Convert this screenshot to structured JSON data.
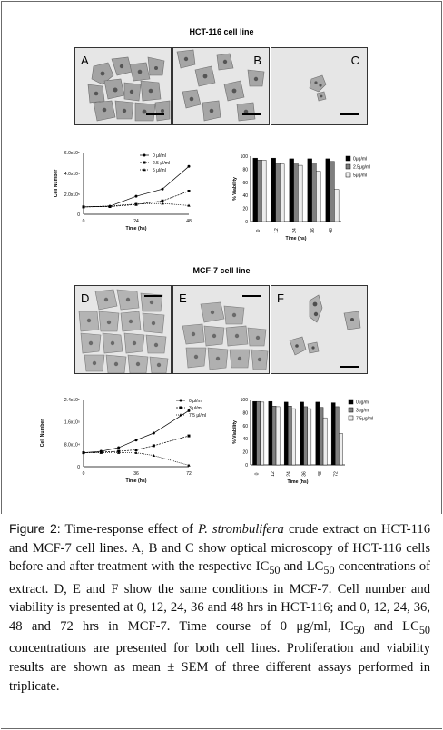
{
  "sections": [
    {
      "title": "HCT-116 cell line",
      "panels": [
        "A",
        "B",
        "C"
      ],
      "growth": {
        "ylabel": "Cell Number",
        "xlabel": "Time (hs)",
        "yticks": [
          "0",
          "2.0x10⁵",
          "4.0x10⁵",
          "6.0x10⁵"
        ],
        "xticks": [
          "0",
          "24",
          "48"
        ],
        "legend": [
          "0 μl/ml",
          "2.5 μl/ml",
          "5 μl/ml"
        ]
      },
      "viability": {
        "ylabel": "% Viability",
        "xlabel": "Time (hs)",
        "yticks": [
          "0",
          "20",
          "40",
          "60",
          "80",
          "100"
        ],
        "xticks": [
          "0",
          "12",
          "24",
          "36",
          "48"
        ],
        "legend": [
          "0μg/ml",
          "2.5μg/ml",
          "5μg/ml"
        ]
      }
    },
    {
      "title": "MCF-7 cell line",
      "panels": [
        "D",
        "E",
        "F"
      ],
      "growth": {
        "ylabel": "Cell Number",
        "xlabel": "Time (hs)",
        "yticks": [
          "0",
          "8.0x10⁴",
          "1.6x10⁵",
          "2.4x10⁵"
        ],
        "xticks": [
          "0",
          "36",
          "72"
        ],
        "legend": [
          "0 μl/ml",
          "3 μl/ml",
          "7.5 μl/ml"
        ]
      },
      "viability": {
        "ylabel": "% Viability",
        "xlabel": "Time (hs)",
        "yticks": [
          "0",
          "20",
          "40",
          "60",
          "80",
          "100"
        ],
        "xticks": [
          "0",
          "12",
          "24",
          "36",
          "48",
          "72"
        ],
        "legend": [
          "0μg/ml",
          "3μg/ml",
          "7.5μg/ml"
        ]
      }
    }
  ],
  "chart_data": [
    {
      "type": "line",
      "x": [
        0,
        12,
        24,
        36,
        48
      ],
      "series": [
        {
          "name": "0 μl/ml",
          "values": [
            72000,
            78000,
            175000,
            245000,
            465000
          ]
        },
        {
          "name": "2.5 μl/ml",
          "values": [
            72000,
            75000,
            95000,
            130000,
            225000
          ]
        },
        {
          "name": "5 μl/ml",
          "values": [
            72000,
            80000,
            100000,
            105000,
            85000
          ]
        }
      ],
      "title": "",
      "xlabel": "Time (hs)",
      "ylabel": "Cell Number",
      "ylim": [
        0,
        600000
      ]
    },
    {
      "type": "bar",
      "categories": [
        "0",
        "12",
        "24",
        "36",
        "48"
      ],
      "series": [
        {
          "name": "0μg/ml",
          "values": [
            97,
            97,
            96,
            96,
            96
          ]
        },
        {
          "name": "2.5μg/ml",
          "values": [
            94,
            89,
            90,
            90,
            92
          ]
        },
        {
          "name": "5μg/ml",
          "values": [
            94,
            88,
            86,
            77,
            49
          ]
        }
      ],
      "title": "",
      "xlabel": "Time (hs)",
      "ylabel": "% Viability",
      "ylim": [
        0,
        100
      ]
    },
    {
      "type": "line",
      "x": [
        0,
        12,
        24,
        36,
        48,
        72
      ],
      "series": [
        {
          "name": "0 μl/ml",
          "values": [
            50000,
            55000,
            68000,
            95000,
            120000,
            200000
          ]
        },
        {
          "name": "3 μl/ml",
          "values": [
            50000,
            52000,
            55000,
            60000,
            75000,
            110000
          ]
        },
        {
          "name": "7.5 μl/ml",
          "values": [
            50000,
            50000,
            50000,
            50000,
            40000,
            5000
          ]
        }
      ],
      "title": "",
      "xlabel": "Time (hs)",
      "ylabel": "Cell Number",
      "ylim": [
        0,
        240000
      ]
    },
    {
      "type": "bar",
      "categories": [
        "0",
        "12",
        "24",
        "36",
        "48",
        "72"
      ],
      "series": [
        {
          "name": "0μg/ml",
          "values": [
            97,
            97,
            96,
            96,
            96,
            95
          ]
        },
        {
          "name": "3μg/ml",
          "values": [
            97,
            90,
            90,
            89,
            88,
            89
          ]
        },
        {
          "name": "7.5μg/ml",
          "values": [
            96,
            89,
            86,
            86,
            72,
            48
          ]
        }
      ],
      "title": "",
      "xlabel": "Time (hs)",
      "ylabel": "% Viability",
      "ylim": [
        0,
        100
      ]
    }
  ],
  "colors": {
    "series_dark": "#000000",
    "series_mid": "#7f7f7f",
    "series_light": "#ededed",
    "panel_bg": "#e6e6e6",
    "cell": "#a8a8a8"
  },
  "caption": {
    "label": "Figure 2:",
    "p1": " Time-response effect of ",
    "species": "P. strombulifera",
    "p2": " crude extract on HCT-116 and MCF-7 cell lines. A, B and C show optical microscopy of HCT-116 cells before and after treatment with the respective IC",
    "sub1": "50",
    "p3": " and LC",
    "sub2": "50",
    "p4": " concentrations of extract. D, E and F show the same conditions in MCF-7. Cell number and viability is presented at 0, 12, 24, 36 and 48 hrs in HCT-116; and 0, 12, 24, 36, 48 and 72 hrs in MCF-7. Time course of 0 μg/ml, IC",
    "sub3": "50",
    "p5": " and LC",
    "sub4": "50",
    "p6": " concentrations are presented for both cell lines. Proliferation and viability results are shown as mean ± SEM of three different assays performed in triplicate."
  }
}
